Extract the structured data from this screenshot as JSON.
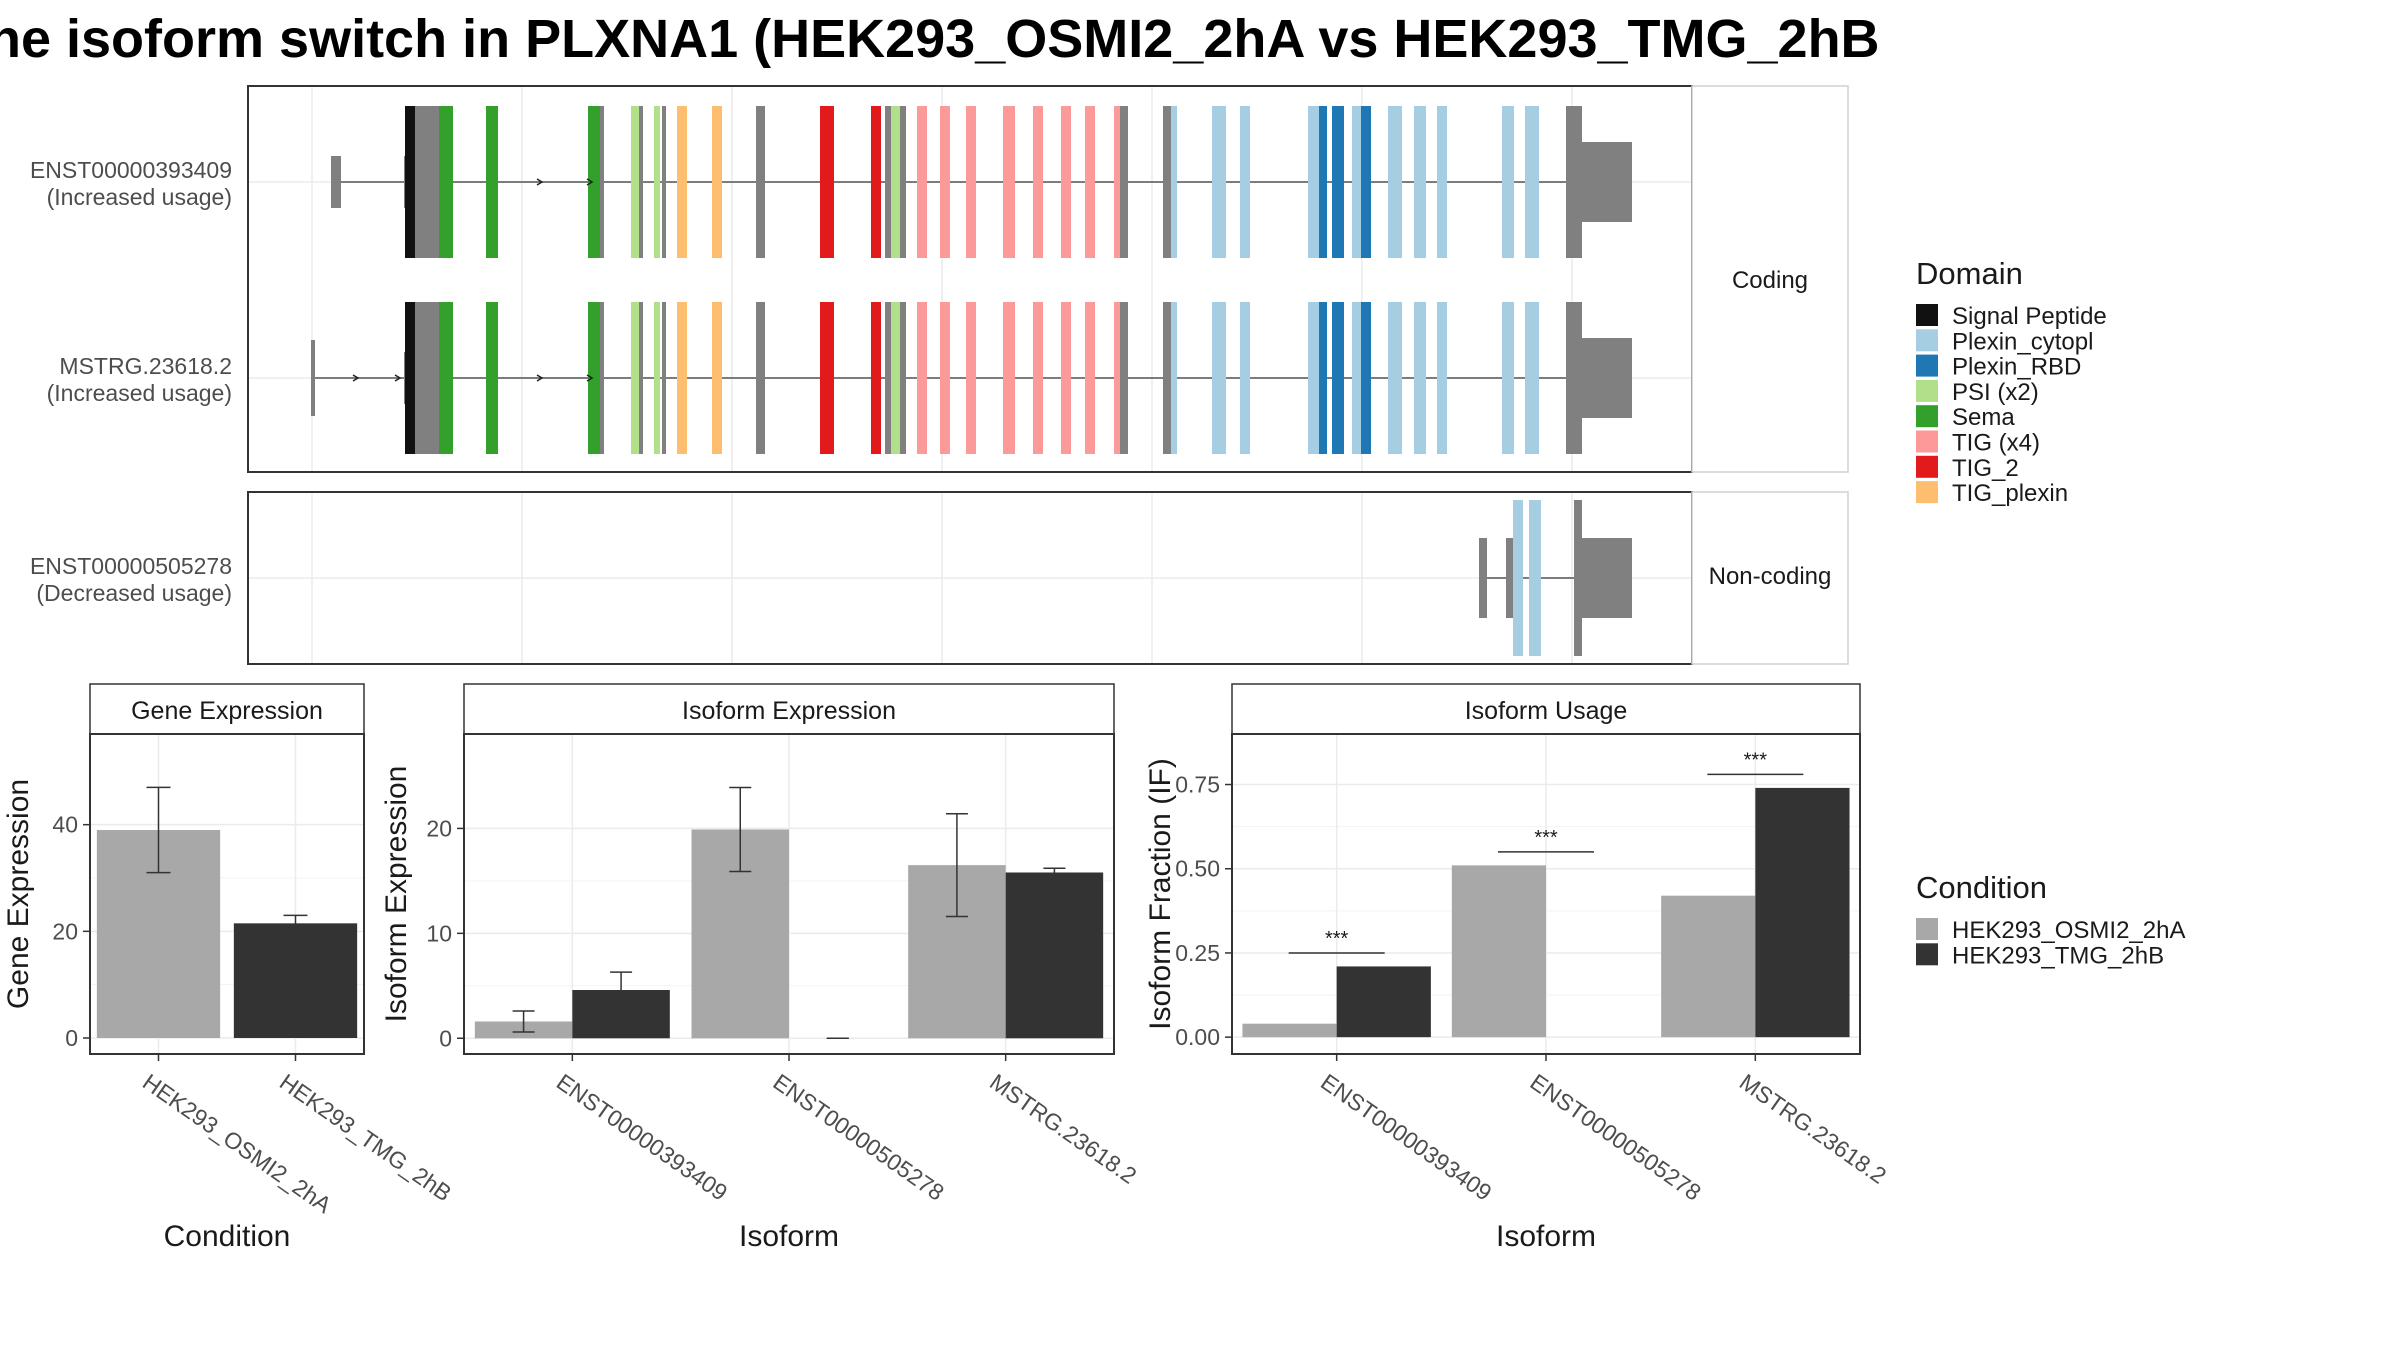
{
  "title": "he isoform switch in PLXNA1 (HEK293_OSMI2_2hA vs HEK293_TMG_2hB",
  "colors": {
    "condition_a": "#a8a8a8",
    "condition_b": "#333333",
    "exon_gray": "#808080",
    "grid": "#ebebeb",
    "strip_fill": "#ffffff",
    "panel_border": "#333333"
  },
  "domain_legend": {
    "title": "Domain",
    "items": [
      {
        "label": "Signal Peptide",
        "color": "#111111"
      },
      {
        "label": "Plexin_cytopl",
        "color": "#a6cee3"
      },
      {
        "label": "Plexin_RBD",
        "color": "#1f78b4"
      },
      {
        "label": "PSI (x2)",
        "color": "#b2df8a"
      },
      {
        "label": "Sema",
        "color": "#33a02c"
      },
      {
        "label": "TIG (x4)",
        "color": "#fb9a99"
      },
      {
        "label": "TIG_2",
        "color": "#e31a1c"
      },
      {
        "label": "TIG_plexin",
        "color": "#fdbf6f"
      }
    ]
  },
  "condition_legend": {
    "title": "Condition",
    "items": [
      {
        "label": "HEK293_OSMI2_2hA",
        "color": "#a8a8a8"
      },
      {
        "label": "HEK293_TMG_2hB",
        "color": "#333333"
      }
    ]
  },
  "structure": {
    "coding_strip": "Coding",
    "noncoding_strip": "Non-coding",
    "transcripts": [
      {
        "id": "ENST00000393409",
        "note": "(Increased usage)",
        "group": "coding"
      },
      {
        "id": "MSTRG.23618.2",
        "note": "(Increased usage)",
        "group": "coding"
      },
      {
        "id": "ENST00000505278",
        "note": "(Decreased usage)",
        "group": "noncoding"
      }
    ]
  },
  "chart_data": [
    {
      "type": "bar",
      "title": "Gene Expression",
      "xlabel": "Condition",
      "ylabel": "Gene Expression",
      "categories": [
        "HEK293_OSMI2_2hA",
        "HEK293_TMG_2hB"
      ],
      "values": [
        39,
        21.5
      ],
      "error": [
        [
          31,
          47
        ],
        [
          20,
          23
        ]
      ],
      "ylim": [
        -3,
        57
      ],
      "yticks": [
        0,
        20,
        40
      ]
    },
    {
      "type": "bar",
      "title": "Isoform Expression",
      "xlabel": "Isoform",
      "ylabel": "Isoform Expression",
      "categories": [
        "ENST00000393409",
        "ENST00000505278",
        "MSTRG.23618.2"
      ],
      "series": [
        {
          "name": "HEK293_OSMI2_2hA",
          "values": [
            1.6,
            19.9,
            16.5
          ],
          "error": [
            [
              0.6,
              2.6
            ],
            [
              15.9,
              23.9
            ],
            [
              11.6,
              21.4
            ]
          ]
        },
        {
          "name": "HEK293_TMG_2hB",
          "values": [
            4.6,
            0,
            15.8
          ],
          "error": [
            [
              2.9,
              6.3
            ],
            [
              0,
              0
            ],
            [
              15.4,
              16.2
            ]
          ]
        }
      ],
      "ylim": [
        -1.5,
        29
      ],
      "yticks": [
        0,
        10,
        20
      ]
    },
    {
      "type": "bar",
      "title": "Isoform Usage",
      "xlabel": "Isoform",
      "ylabel": "Isoform Fraction (IF)",
      "categories": [
        "ENST00000393409",
        "ENST00000505278",
        "MSTRG.23618.2"
      ],
      "series": [
        {
          "name": "HEK293_OSMI2_2hA",
          "values": [
            0.04,
            0.51,
            0.42
          ]
        },
        {
          "name": "HEK293_TMG_2hB",
          "values": [
            0.21,
            0,
            0.74
          ]
        }
      ],
      "significance": [
        "***",
        "***",
        "***"
      ],
      "sig_levels": [
        0.25,
        0.55,
        0.78
      ],
      "ylim": [
        -0.05,
        0.9
      ],
      "yticks": [
        "0.00",
        "0.25",
        "0.50",
        "0.75"
      ]
    }
  ]
}
